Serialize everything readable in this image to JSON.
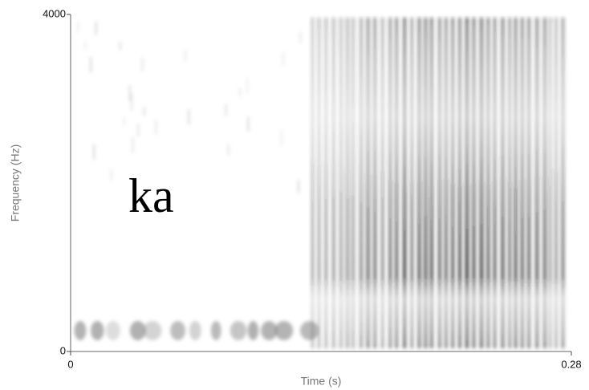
{
  "chart_data": {
    "type": "spectrogram",
    "x_label": "Time (s)",
    "y_label": "Frequency (Hz)",
    "annotation": "ka",
    "xlim": [
      0,
      0.28
    ],
    "xticks": [
      0,
      0.28
    ],
    "ylim": [
      0,
      4000
    ],
    "yticks": [
      0,
      4000
    ]
  }
}
